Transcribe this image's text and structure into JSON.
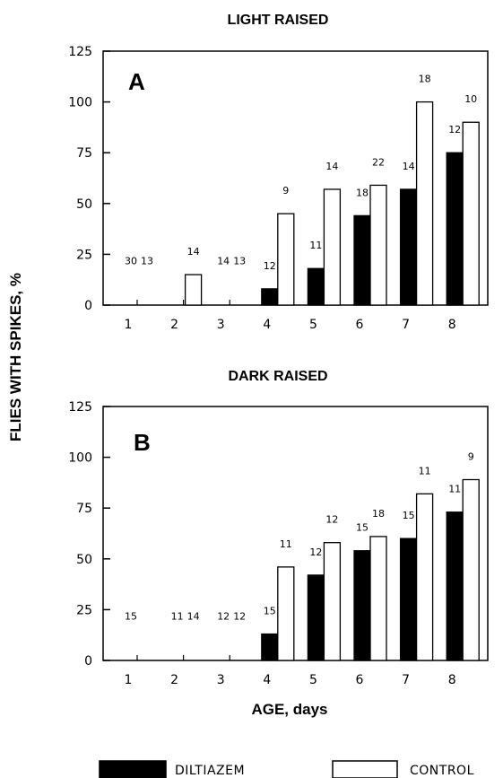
{
  "xlabel": "AGE, days",
  "ylabel": "FLIES WITH SPIKES, %",
  "legend": [
    {
      "label": "DILTIAZEM",
      "color": "#000000"
    },
    {
      "label": "CONTROL",
      "color": "#ffffff"
    }
  ],
  "chart_data": [
    {
      "type": "bar",
      "title": "LIGHT RAISED",
      "panel_label": "A",
      "categories": [
        "1",
        "2",
        "3",
        "4",
        "5",
        "6",
        "7",
        "8"
      ],
      "yticks": [
        "0",
        "25",
        "50",
        "75",
        "100",
        "125"
      ],
      "ylim": [
        0,
        125
      ],
      "series": [
        {
          "name": "DILTIAZEM",
          "values": [
            0,
            0,
            0,
            8,
            18,
            44,
            57,
            75
          ],
          "n_labels": [
            "30",
            "",
            "14",
            "12",
            "11",
            "18",
            "14",
            "12"
          ]
        },
        {
          "name": "CONTROL",
          "values": [
            0,
            15,
            0,
            45,
            57,
            59,
            100,
            90
          ],
          "n_labels": [
            "13",
            "14",
            "13",
            "9",
            "14",
            "22",
            "18",
            "10"
          ]
        }
      ]
    },
    {
      "type": "bar",
      "title": "DARK RAISED",
      "panel_label": "B",
      "categories": [
        "1",
        "2",
        "3",
        "4",
        "5",
        "6",
        "7",
        "8"
      ],
      "yticks": [
        "0",
        "25",
        "50",
        "75",
        "100",
        "125"
      ],
      "ylim": [
        0,
        125
      ],
      "series": [
        {
          "name": "DILTIAZEM",
          "values": [
            0,
            0,
            0,
            13,
            42,
            54,
            60,
            73
          ],
          "n_labels": [
            "15",
            "11",
            "12",
            "15",
            "12",
            "15",
            "15",
            "11"
          ]
        },
        {
          "name": "CONTROL",
          "values": [
            0,
            0,
            0,
            46,
            58,
            61,
            82,
            89
          ],
          "n_labels": [
            "",
            "14",
            "12",
            "11",
            "12",
            "18",
            "11",
            "9"
          ]
        }
      ]
    }
  ]
}
